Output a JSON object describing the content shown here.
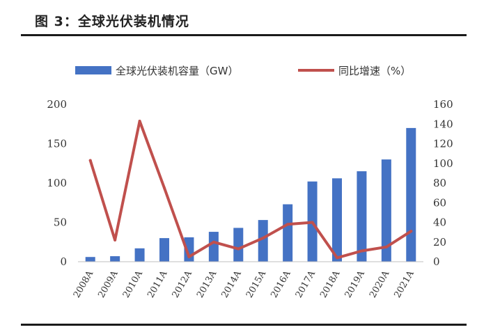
{
  "figure": {
    "title": "图 3：全球光伏装机情况"
  },
  "chart_data": {
    "type": "bar+line",
    "categories": [
      "2008A",
      "2009A",
      "2010A",
      "2011A",
      "2012A",
      "2013A",
      "2014A",
      "2015A",
      "2016A",
      "2017A",
      "2018A",
      "2019A",
      "2020A",
      "2021A"
    ],
    "series": [
      {
        "name": "全球光伏装机容量（GW）",
        "type": "bar",
        "axis": "left",
        "color": "#4472c4",
        "values": [
          6,
          7,
          17,
          30,
          31,
          38,
          43,
          53,
          73,
          102,
          106,
          115,
          130,
          170
        ]
      },
      {
        "name": "同比增速（%）",
        "type": "line",
        "axis": "right",
        "color": "#c0504d",
        "values": [
          103,
          22,
          143,
          75,
          5,
          20,
          13,
          24,
          38,
          40,
          4,
          11,
          15,
          31
        ]
      }
    ],
    "y_left": {
      "ylim": [
        0,
        200
      ],
      "ticks": [
        0,
        50,
        100,
        150,
        200
      ]
    },
    "y_right": {
      "ylim": [
        0,
        160
      ],
      "ticks": [
        0,
        20,
        40,
        60,
        80,
        100,
        120,
        140,
        160
      ]
    },
    "legend_position": "top",
    "grid": false
  }
}
